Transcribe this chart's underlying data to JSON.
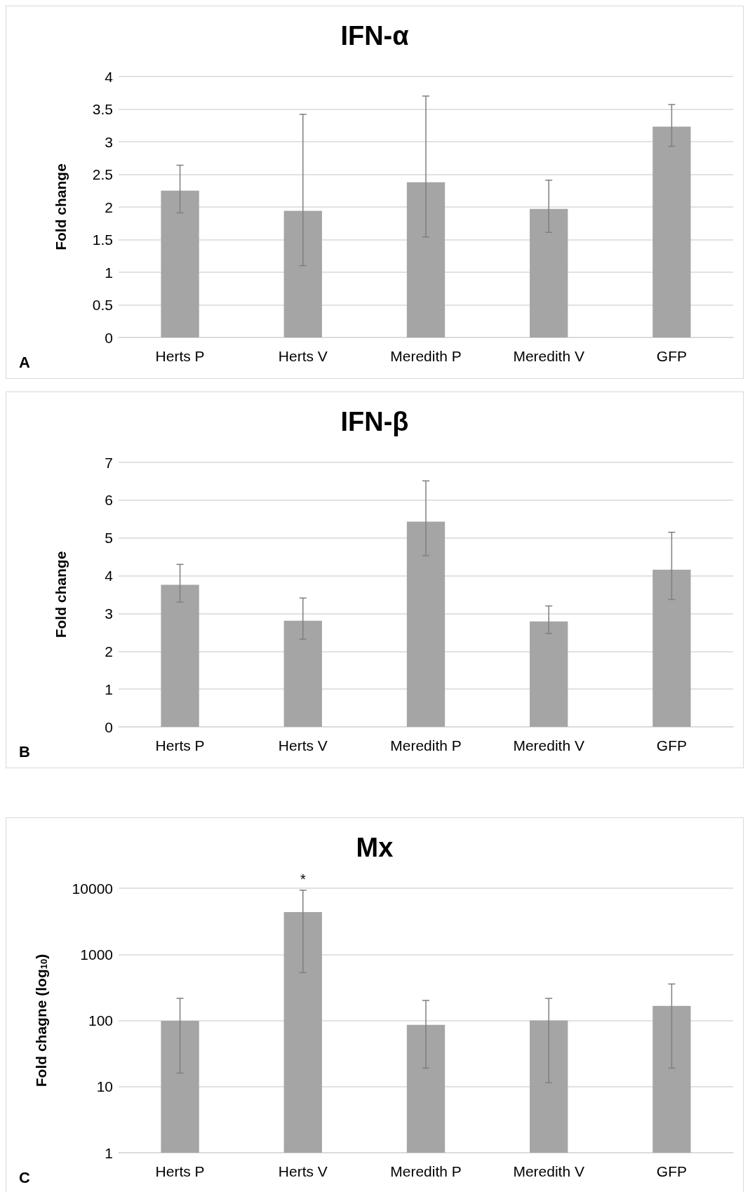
{
  "chart_data": [
    {
      "type": "bar",
      "title": "IFN-α",
      "ylabel": "Fold change",
      "categories": [
        "Herts P",
        "Herts V",
        "Meredith P",
        "Meredith V",
        "GFP"
      ],
      "color": "#a5a5a5",
      "values": [
        2.25,
        1.94,
        2.38,
        1.97,
        3.23
      ],
      "errors": [
        [
          1.91,
          2.64
        ],
        [
          1.1,
          3.42
        ],
        [
          1.54,
          3.7
        ],
        [
          1.61,
          2.41
        ],
        [
          2.93,
          3.57
        ]
      ],
      "ylim": [
        0,
        4
      ],
      "yticks": [
        0,
        0.5,
        1,
        1.5,
        2,
        2.5,
        3,
        3.5,
        4
      ],
      "grid": "y",
      "annotations": [
        "A"
      ]
    },
    {
      "type": "bar",
      "title": "IFN-β",
      "ylabel": "Fold change",
      "categories": [
        "Herts P",
        "Herts V",
        "Meredith P",
        "Meredith V",
        "GFP"
      ],
      "color": "#a5a5a5",
      "values": [
        3.76,
        2.81,
        5.43,
        2.79,
        4.16
      ],
      "errors": [
        [
          3.3,
          4.3
        ],
        [
          2.32,
          3.41
        ],
        [
          4.53,
          6.51
        ],
        [
          2.47,
          3.2
        ],
        [
          3.37,
          5.15
        ]
      ],
      "ylim": [
        0,
        7
      ],
      "yticks": [
        0,
        1,
        2,
        3,
        4,
        5,
        6,
        7
      ],
      "grid": "y",
      "annotations": [
        "B"
      ]
    },
    {
      "type": "bar",
      "title": "Mx",
      "ylabel": "Fold chagne (log$_{10}$)",
      "categories": [
        "Herts P",
        "Herts V",
        "Meredith P",
        "Meredith V",
        "GFP"
      ],
      "color": "#a5a5a5",
      "values": [
        99,
        4360,
        86,
        100,
        166
      ],
      "errors": [
        [
          16,
          216
        ],
        [
          530,
          9330
        ],
        [
          19,
          201
        ],
        [
          11.4,
          216
        ],
        [
          19,
          356
        ]
      ],
      "ylim": [
        1,
        10000
      ],
      "yticks": [
        1,
        10,
        100,
        1000,
        10000
      ],
      "grid": "y",
      "log": true,
      "annotations": [
        "C",
        {
          "text": "*",
          "x": "Herts V",
          "y": 9330
        }
      ]
    }
  ]
}
